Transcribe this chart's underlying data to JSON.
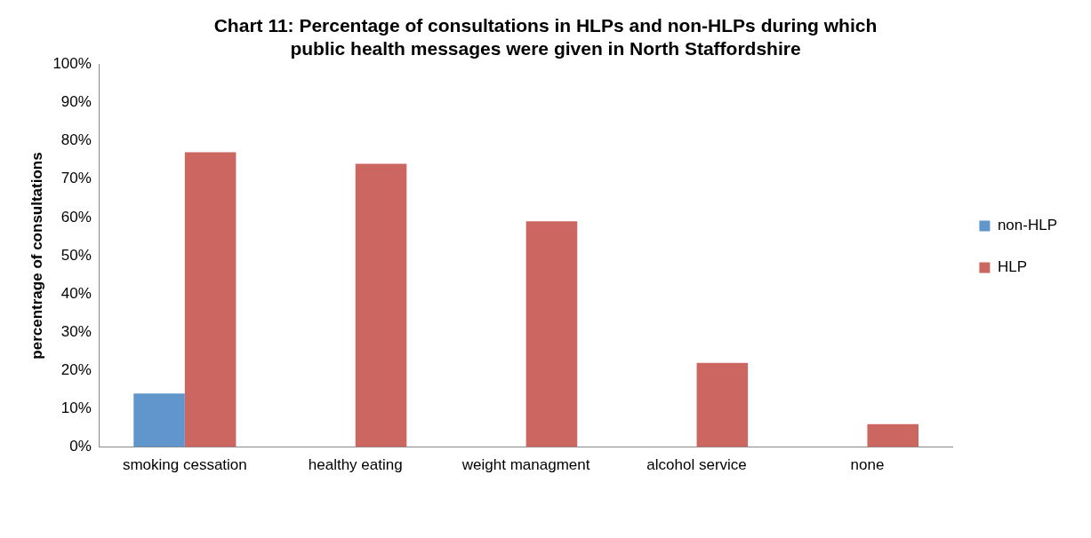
{
  "chart_data": {
    "type": "bar",
    "title": [
      "Chart 11: Percentage of consultations in HLPs and non-HLPs during which",
      "public health messages were given in North Staffordshire"
    ],
    "ylabel": "percentrage of consultations",
    "categories": [
      "smoking cessation",
      "healthy eating",
      "weight managment",
      "alcohol service",
      "none"
    ],
    "series": [
      {
        "name": "non-HLP",
        "color": "#6096cc",
        "values": [
          14,
          0,
          0,
          0,
          0
        ]
      },
      {
        "name": "HLP",
        "color": "#cc6660",
        "values": [
          77,
          74,
          59,
          22,
          6
        ]
      }
    ],
    "ylim": [
      0,
      100
    ],
    "yticks": [
      {
        "value": 0,
        "label": "0%"
      },
      {
        "value": 10,
        "label": "10%"
      },
      {
        "value": 20,
        "label": "20%"
      },
      {
        "value": 30,
        "label": "30%"
      },
      {
        "value": 40,
        "label": "40%"
      },
      {
        "value": 50,
        "label": "50%"
      },
      {
        "value": 60,
        "label": "60%"
      },
      {
        "value": 70,
        "label": "70%"
      },
      {
        "value": 80,
        "label": "80%"
      },
      {
        "value": 90,
        "label": "90%"
      },
      {
        "value": 100,
        "label": "100%"
      }
    ],
    "grid": false,
    "legend": "right"
  }
}
